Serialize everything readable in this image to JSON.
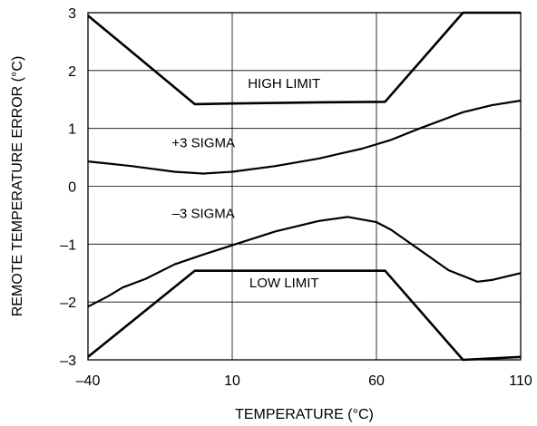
{
  "chart_data": {
    "type": "line",
    "xlabel": "TEMPERATURE (°C)",
    "ylabel": "REMOTE TEMPERATURE ERROR (°C)",
    "xlim": [
      -40,
      110
    ],
    "ylim": [
      -3,
      3
    ],
    "x_ticks": [
      -40,
      10,
      60,
      110
    ],
    "x_tick_labels": [
      "–40",
      "10",
      "60",
      "110"
    ],
    "y_ticks": [
      -3,
      -2,
      -1,
      0,
      1,
      2,
      3
    ],
    "y_tick_labels": [
      "–3",
      "–2",
      "–1",
      "0",
      "1",
      "2",
      "3"
    ],
    "grid": true,
    "series": [
      {
        "name": "HIGH LIMIT",
        "x": [
          -40,
          -3,
          10,
          40,
          63,
          90,
          110
        ],
        "y": [
          2.95,
          1.42,
          1.43,
          1.45,
          1.46,
          3.0,
          3.0
        ]
      },
      {
        "name": "+3 SIGMA",
        "x": [
          -40,
          -25,
          -10,
          0,
          10,
          25,
          40,
          55,
          65,
          75,
          90,
          100,
          110
        ],
        "y": [
          0.43,
          0.35,
          0.25,
          0.22,
          0.25,
          0.35,
          0.48,
          0.65,
          0.8,
          1.0,
          1.28,
          1.4,
          1.48
        ]
      },
      {
        "name": "–3 SIGMA",
        "x": [
          -40,
          -33,
          -28,
          -20,
          -10,
          0,
          10,
          25,
          40,
          50,
          60,
          65,
          75,
          85,
          95,
          100,
          110
        ],
        "y": [
          -2.08,
          -1.9,
          -1.75,
          -1.6,
          -1.35,
          -1.18,
          -1.02,
          -0.78,
          -0.6,
          -0.53,
          -0.62,
          -0.75,
          -1.1,
          -1.45,
          -1.65,
          -1.62,
          -1.5
        ]
      },
      {
        "name": "LOW LIMIT",
        "x": [
          -40,
          -3,
          10,
          40,
          63,
          90,
          110
        ],
        "y": [
          -2.95,
          -1.46,
          -1.46,
          -1.46,
          -1.46,
          -3.0,
          -2.95
        ]
      }
    ],
    "annotations": [
      {
        "text": "HIGH LIMIT",
        "x": 28,
        "y": 1.7
      },
      {
        "text": "+3 SIGMA",
        "x": 0,
        "y": 0.67
      },
      {
        "text": "–3 SIGMA",
        "x": 0,
        "y": -0.55
      },
      {
        "text": "LOW LIMIT",
        "x": 28,
        "y": -1.75
      }
    ]
  }
}
